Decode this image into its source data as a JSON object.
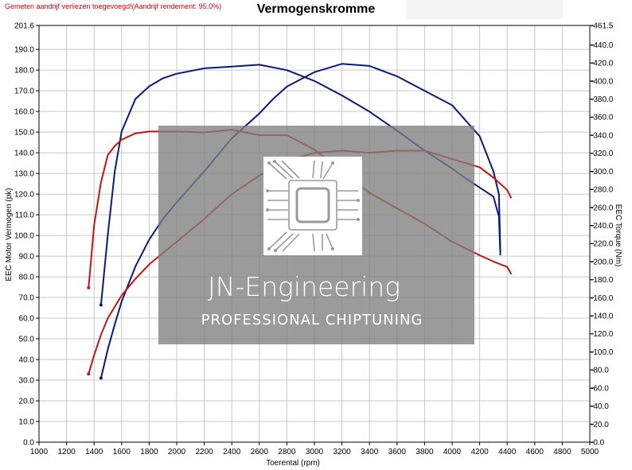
{
  "header": {
    "note": "Gemeten aandrijf verliezen toegevoegd!(Aandrijf rendement: 95.0%)",
    "title": "Vermogenskromme"
  },
  "watermark": {
    "line1": "JN-Engineering",
    "line2": "PROFESSIONAL CHIPTUNING",
    "icon": "chip-icon"
  },
  "colors": {
    "tuned": "#0a1a7a",
    "stock": "#c41414",
    "grid": "#c8c8c8",
    "overlay": "#7f7f7f"
  },
  "chart_data": {
    "type": "line",
    "xlabel": "Toerental (rpm)",
    "ylabel_left": "EEC Motor Vermogen (pk)",
    "ylabel_right": "EEC Torque (Nm)",
    "xlim": [
      1000,
      5000
    ],
    "ylim_left": [
      0,
      201.6
    ],
    "ylim_right": [
      0,
      461.5
    ],
    "x_ticks": [
      "1000",
      "1200",
      "1400",
      "1600",
      "1800",
      "2000",
      "2200",
      "2400",
      "2600",
      "2800",
      "3000",
      "3200",
      "3400",
      "3600",
      "3800",
      "4000",
      "4200",
      "4400",
      "4600",
      "4800",
      "5000"
    ],
    "left_ticks": [
      "0.0",
      "10.0",
      "20.0",
      "30.0",
      "40.0",
      "50.0",
      "60.0",
      "70.0",
      "80.0",
      "90.0",
      "100.0",
      "110.0",
      "120.0",
      "130.0",
      "140.0",
      "150.0",
      "160.0",
      "170.0",
      "180.0",
      "190.0",
      "201.6"
    ],
    "right_ticks": [
      "0.0",
      "20.0",
      "40.0",
      "60.0",
      "80.0",
      "100.0",
      "120.0",
      "140.0",
      "160.0",
      "180.0",
      "200.0",
      "220.0",
      "240.0",
      "260.0",
      "280.0",
      "300.0",
      "320.0",
      "340.0",
      "360.0",
      "380.0",
      "400.0",
      "420.0",
      "440.0",
      "461.5"
    ],
    "grid": true,
    "series": [
      {
        "axis": "left",
        "color": "#0a1a7a",
        "x": [
          1450,
          1500,
          1550,
          1600,
          1700,
          1800,
          1900,
          2000,
          2200,
          2400,
          2600,
          2700,
          2800,
          3000,
          3200,
          3400,
          3600,
          3800,
          4000,
          4200,
          4300,
          4340,
          4350
        ],
        "values": [
          31,
          45,
          57,
          68,
          85,
          98,
          108,
          116,
          131,
          147,
          159,
          166,
          172,
          179,
          183,
          182,
          177,
          170,
          163,
          148,
          131,
          120,
          92
        ]
      },
      {
        "axis": "right",
        "color": "#0a1a7a",
        "x": [
          1450,
          1500,
          1550,
          1600,
          1700,
          1800,
          1900,
          2000,
          2200,
          2400,
          2600,
          2800,
          3000,
          3200,
          3400,
          3600,
          3800,
          4000,
          4100,
          4200,
          4300,
          4340,
          4350
        ],
        "values": [
          152,
          230,
          300,
          344,
          380,
          394,
          403,
          408,
          414,
          416,
          418,
          412,
          400,
          384,
          366,
          345,
          323,
          303,
          292,
          282,
          272,
          250,
          207
        ]
      },
      {
        "axis": "left",
        "color": "#c41414",
        "x": [
          1360,
          1400,
          1450,
          1500,
          1600,
          1700,
          1800,
          2000,
          2200,
          2400,
          2600,
          2800,
          3000,
          3200,
          3400,
          3600,
          3800,
          4000,
          4200,
          4300,
          4400,
          4430
        ],
        "values": [
          33,
          42,
          52,
          60,
          71,
          79,
          86,
          97,
          108,
          120,
          129,
          136,
          140,
          141,
          140,
          141,
          141,
          137,
          133,
          128,
          122,
          118
        ]
      },
      {
        "axis": "right",
        "color": "#c41414",
        "x": [
          1360,
          1400,
          1450,
          1500,
          1550,
          1600,
          1700,
          1800,
          2000,
          2200,
          2400,
          2600,
          2800,
          3000,
          3200,
          3400,
          3600,
          3800,
          4000,
          4200,
          4300,
          4400,
          4430
        ],
        "values": [
          171,
          240,
          288,
          318,
          328,
          335,
          342,
          344,
          344,
          343,
          346,
          340,
          340,
          324,
          300,
          276,
          259,
          242,
          222,
          207,
          200,
          194,
          186
        ]
      }
    ]
  }
}
